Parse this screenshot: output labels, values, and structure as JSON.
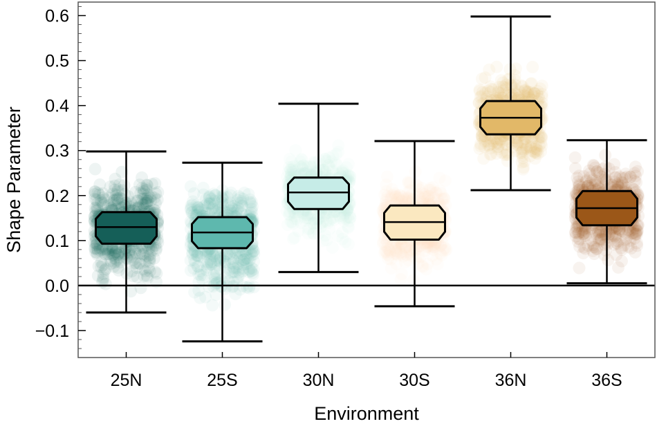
{
  "chart_data": {
    "type": "boxplot",
    "title": "",
    "xlabel": "Environment",
    "ylabel": "Shape Parameter",
    "ylim": [
      -0.16,
      0.63
    ],
    "yticks": [
      -0.1,
      0.0,
      0.1,
      0.2,
      0.3,
      0.4,
      0.5,
      0.6
    ],
    "ytick_labels": [
      "−0.1",
      "0.0",
      "0.1",
      "0.2",
      "0.3",
      "0.4",
      "0.5",
      "0.6"
    ],
    "reference_line": 0.0,
    "categories": [
      "25N",
      "25S",
      "30N",
      "30S",
      "36N",
      "36S"
    ],
    "boxes": [
      {
        "name": "25N",
        "whisker_low": -0.06,
        "q1": 0.093,
        "median": 0.13,
        "q3": 0.163,
        "whisker_high": 0.298,
        "cloud_low": -0.03,
        "cloud_high": 0.27,
        "color": "#155f58"
      },
      {
        "name": "25S",
        "whisker_low": -0.124,
        "q1": 0.083,
        "median": 0.118,
        "q3": 0.152,
        "whisker_high": 0.273,
        "cloud_low": -0.08,
        "cloud_high": 0.24,
        "color": "#5eb8ae"
      },
      {
        "name": "30N",
        "whisker_low": 0.03,
        "q1": 0.17,
        "median": 0.207,
        "q3": 0.24,
        "whisker_high": 0.404,
        "cloud_low": 0.07,
        "cloud_high": 0.32,
        "color": "#c6ece7"
      },
      {
        "name": "30S",
        "whisker_low": -0.046,
        "q1": 0.102,
        "median": 0.141,
        "q3": 0.178,
        "whisker_high": 0.321,
        "cloud_low": 0.0,
        "cloud_high": 0.26,
        "color": "#fbe8c0"
      },
      {
        "name": "36N",
        "whisker_low": 0.212,
        "q1": 0.336,
        "median": 0.373,
        "q3": 0.41,
        "whisker_high": 0.598,
        "cloud_low": 0.24,
        "cloud_high": 0.51,
        "color": "#e2b868"
      },
      {
        "name": "36S",
        "whisker_low": 0.005,
        "q1": 0.134,
        "median": 0.172,
        "q3": 0.21,
        "whisker_high": 0.323,
        "cloud_low": 0.02,
        "cloud_high": 0.3,
        "color": "#9b5718"
      }
    ]
  }
}
